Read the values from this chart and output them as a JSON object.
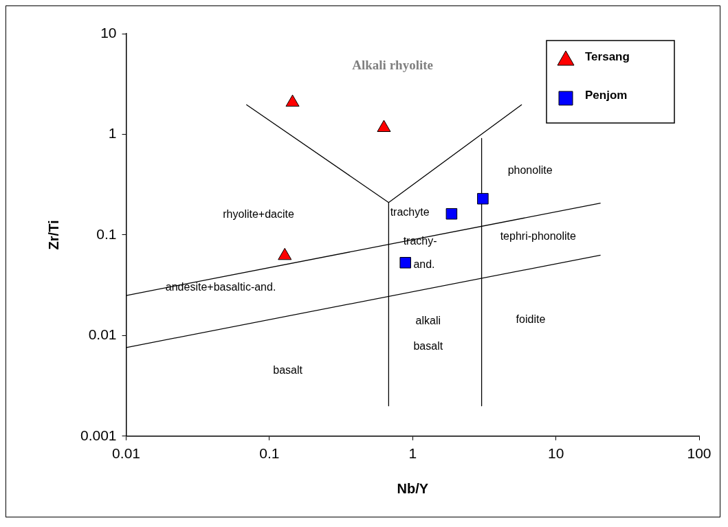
{
  "chart_data": {
    "type": "scatter",
    "xlabel": "Nb/Y",
    "ylabel": "Zr/Ti",
    "log": "xy",
    "xlim": [
      0.01,
      100
    ],
    "ylim": [
      0.001,
      10
    ],
    "xticks": [
      0.01,
      0.1,
      1,
      10,
      100
    ],
    "yticks": [
      0.001,
      0.01,
      0.1,
      1,
      10
    ],
    "grid": false,
    "legend": "top right",
    "series": [
      {
        "name": "Tersang",
        "marker": "triangle",
        "color": "#ff0000",
        "x": [
          0.145,
          0.63,
          0.128
        ],
        "values": [
          2.07,
          1.16,
          0.062
        ]
      },
      {
        "name": "Penjom",
        "marker": "square",
        "color": "#0000ff",
        "x": [
          1.87,
          3.09,
          0.89
        ],
        "values": [
          0.162,
          0.229,
          0.053
        ]
      },
      {
        "type": "line",
        "marker": "none",
        "color": "#000000",
        "x": [
          0.069,
          0.68,
          5.78
        ],
        "values": [
          1.97,
          0.21,
          1.97
        ]
      },
      {
        "type": "line",
        "marker": "none",
        "color": "#000000",
        "x": [
          0.68,
          0.68
        ],
        "values": [
          0.21,
          0.002
        ]
      },
      {
        "type": "line",
        "marker": "none",
        "color": "#000000",
        "x": [
          3.03,
          3.03
        ],
        "values": [
          0.91,
          0.002
        ]
      },
      {
        "type": "line",
        "marker": "none",
        "color": "#000000",
        "x": [
          0.01,
          20.5
        ],
        "values": [
          0.025,
          0.207
        ]
      },
      {
        "type": "line",
        "marker": "none",
        "color": "#000000",
        "x": [
          0.01,
          20.5
        ],
        "values": [
          0.0076,
          0.063
        ]
      }
    ],
    "annotations": [
      "Alkali rhyolite",
      "rhyolite+dacite",
      "andesite+basaltic-and.",
      "basalt",
      "trachyte",
      "trachy-",
      "and.",
      "phonolite",
      "tephri-phonolite",
      "alkali",
      "basalt",
      "foidite"
    ]
  }
}
